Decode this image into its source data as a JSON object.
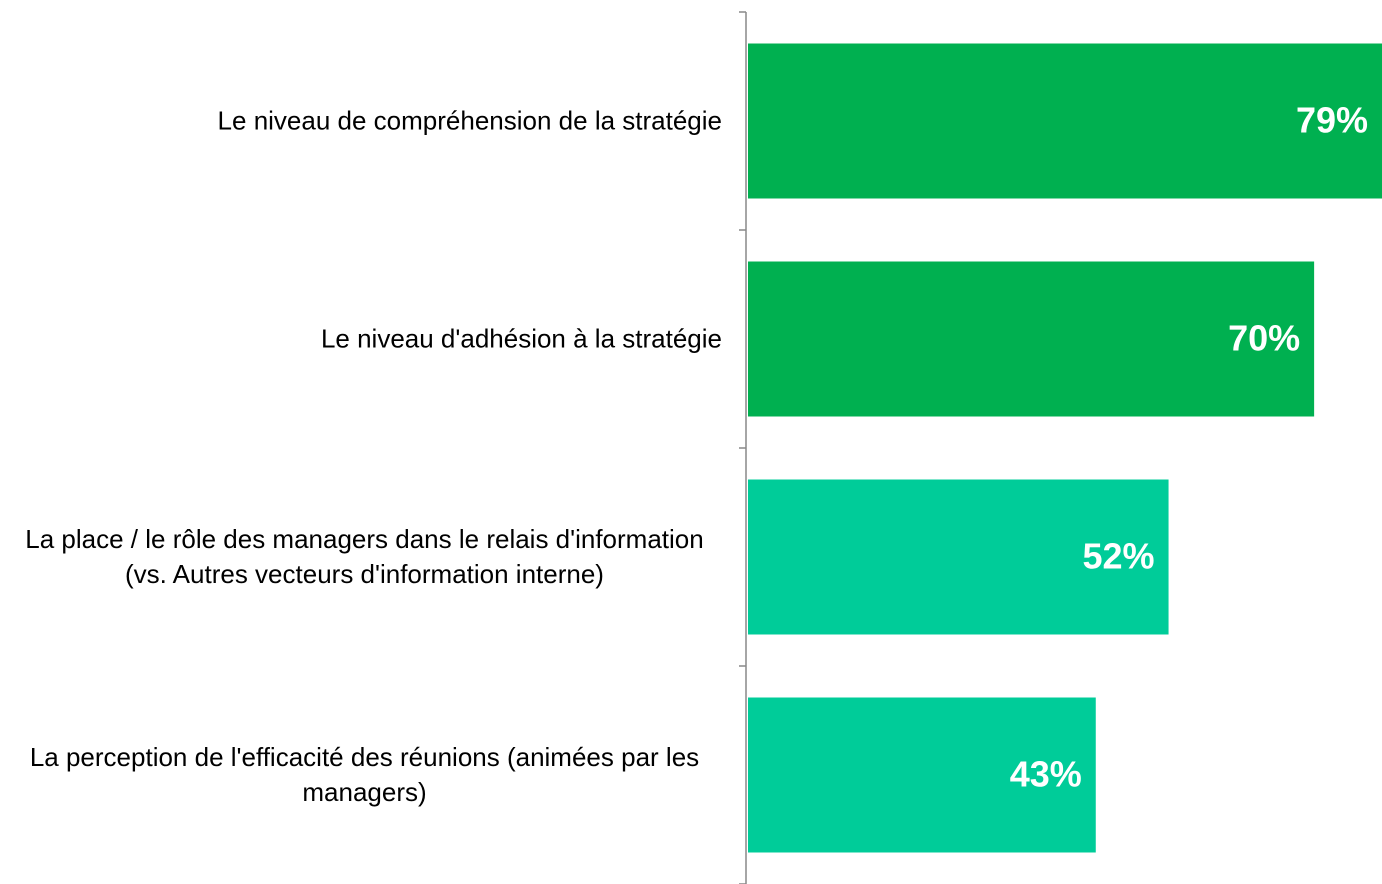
{
  "chart_data": {
    "type": "barh",
    "categories": [
      "Le niveau de compréhension de la stratégie",
      "Le niveau d'adhésion à la stratégie",
      "La place / le rôle des managers dans le relais d'information (vs. Autres vecteurs d'information interne)",
      "La perception de l'efficacité des réunions (animées par les managers)"
    ],
    "values": [
      79,
      70,
      52,
      43
    ],
    "value_labels": [
      "79%",
      "70%",
      "52%",
      "43%"
    ],
    "colors": [
      "#00b050",
      "#00b050",
      "#00cc99",
      "#00cc99"
    ],
    "xlim": [
      0,
      80
    ]
  }
}
